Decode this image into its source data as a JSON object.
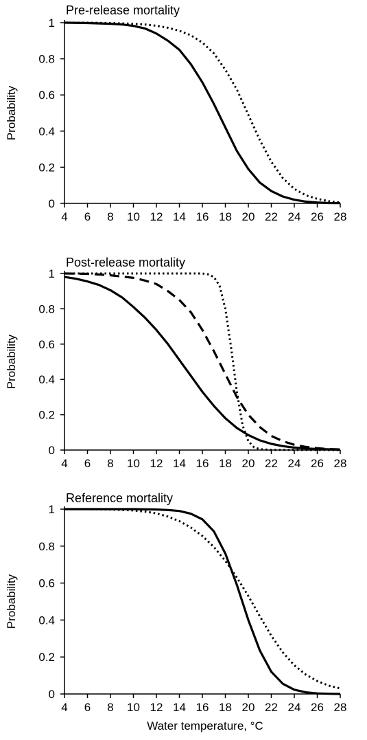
{
  "chart_data": [
    {
      "type": "line",
      "title": "Pre-release mortality",
      "xlabel": "",
      "ylabel": "Probability",
      "xlim": [
        4,
        28
      ],
      "ylim": [
        0,
        1
      ],
      "xticks": [
        4,
        6,
        8,
        10,
        12,
        14,
        16,
        18,
        20,
        22,
        24,
        26,
        28
      ],
      "yticks": [
        0,
        0.2,
        0.4,
        0.6,
        0.8,
        1
      ],
      "grid": false,
      "series": [
        {
          "style": "solid",
          "x": [
            4,
            6,
            8,
            9,
            10,
            11,
            12,
            13,
            14,
            15,
            16,
            17,
            18,
            19,
            20,
            21,
            22,
            23,
            24,
            25,
            26,
            27,
            28
          ],
          "y": [
            1.0,
            0.998,
            0.994,
            0.99,
            0.982,
            0.968,
            0.94,
            0.9,
            0.85,
            0.77,
            0.67,
            0.55,
            0.42,
            0.29,
            0.19,
            0.115,
            0.068,
            0.038,
            0.02,
            0.01,
            0.005,
            0.002,
            0.001
          ]
        },
        {
          "style": "dotted",
          "x": [
            4,
            6,
            8,
            10,
            11,
            12,
            13,
            14,
            15,
            16,
            17,
            18,
            19,
            20,
            21,
            22,
            23,
            24,
            25,
            26,
            27,
            28
          ],
          "y": [
            1.0,
            1.0,
            0.998,
            0.994,
            0.99,
            0.983,
            0.972,
            0.955,
            0.93,
            0.89,
            0.83,
            0.74,
            0.63,
            0.49,
            0.35,
            0.23,
            0.14,
            0.08,
            0.045,
            0.025,
            0.012,
            0.005
          ]
        }
      ]
    },
    {
      "type": "line",
      "title": "Post-release mortality",
      "xlabel": "",
      "ylabel": "Probability",
      "xlim": [
        4,
        28
      ],
      "ylim": [
        0,
        1
      ],
      "xticks": [
        4,
        6,
        8,
        10,
        12,
        14,
        16,
        18,
        20,
        22,
        24,
        26,
        28
      ],
      "yticks": [
        0,
        0.2,
        0.4,
        0.6,
        0.8,
        1
      ],
      "grid": false,
      "series": [
        {
          "style": "solid",
          "x": [
            4,
            5,
            6,
            7,
            8,
            9,
            10,
            11,
            12,
            13,
            14,
            15,
            16,
            17,
            18,
            19,
            20,
            21,
            22,
            23,
            24,
            25,
            26,
            27,
            28
          ],
          "y": [
            0.98,
            0.97,
            0.955,
            0.935,
            0.905,
            0.865,
            0.81,
            0.75,
            0.68,
            0.6,
            0.51,
            0.42,
            0.33,
            0.25,
            0.18,
            0.125,
            0.085,
            0.055,
            0.035,
            0.022,
            0.014,
            0.009,
            0.006,
            0.004,
            0.002
          ]
        },
        {
          "style": "dashed",
          "x": [
            4,
            6,
            8,
            10,
            11,
            12,
            13,
            14,
            15,
            16,
            17,
            18,
            19,
            20,
            21,
            22,
            23,
            24,
            25,
            26,
            27,
            28
          ],
          "y": [
            1.0,
            0.998,
            0.99,
            0.975,
            0.96,
            0.94,
            0.9,
            0.85,
            0.78,
            0.68,
            0.56,
            0.43,
            0.3,
            0.2,
            0.13,
            0.08,
            0.05,
            0.03,
            0.018,
            0.01,
            0.006,
            0.003
          ]
        },
        {
          "style": "dotted",
          "x": [
            4,
            8,
            12,
            16,
            16.5,
            17,
            17.5,
            18,
            18.5,
            19,
            19.5,
            20,
            20.5,
            21,
            22,
            28
          ],
          "y": [
            1.0,
            1.0,
            1.0,
            1.0,
            0.995,
            0.98,
            0.93,
            0.8,
            0.58,
            0.33,
            0.14,
            0.05,
            0.015,
            0.005,
            0.001,
            0.0
          ]
        }
      ]
    },
    {
      "type": "line",
      "title": "Reference mortality",
      "xlabel": "Water temperature, °C",
      "ylabel": "Probability",
      "xlim": [
        4,
        28
      ],
      "ylim": [
        0,
        1
      ],
      "xticks": [
        4,
        6,
        8,
        10,
        12,
        14,
        16,
        18,
        20,
        22,
        24,
        26,
        28
      ],
      "yticks": [
        0,
        0.2,
        0.4,
        0.6,
        0.8,
        1
      ],
      "grid": false,
      "series": [
        {
          "style": "solid",
          "x": [
            4,
            8,
            10,
            12,
            13,
            14,
            15,
            16,
            17,
            18,
            19,
            20,
            21,
            22,
            23,
            24,
            25,
            26,
            27,
            28
          ],
          "y": [
            1.0,
            1.0,
            1.0,
            0.998,
            0.995,
            0.99,
            0.975,
            0.945,
            0.88,
            0.76,
            0.59,
            0.4,
            0.235,
            0.12,
            0.055,
            0.023,
            0.009,
            0.003,
            0.001,
            0.0
          ]
        },
        {
          "style": "dotted",
          "x": [
            4,
            6,
            8,
            10,
            11,
            12,
            13,
            14,
            15,
            16,
            17,
            18,
            19,
            20,
            21,
            22,
            23,
            24,
            25,
            26,
            27,
            28
          ],
          "y": [
            1.0,
            1.0,
            0.998,
            0.993,
            0.987,
            0.977,
            0.96,
            0.935,
            0.9,
            0.855,
            0.795,
            0.72,
            0.63,
            0.53,
            0.42,
            0.315,
            0.225,
            0.155,
            0.105,
            0.07,
            0.045,
            0.03
          ]
        }
      ]
    }
  ]
}
